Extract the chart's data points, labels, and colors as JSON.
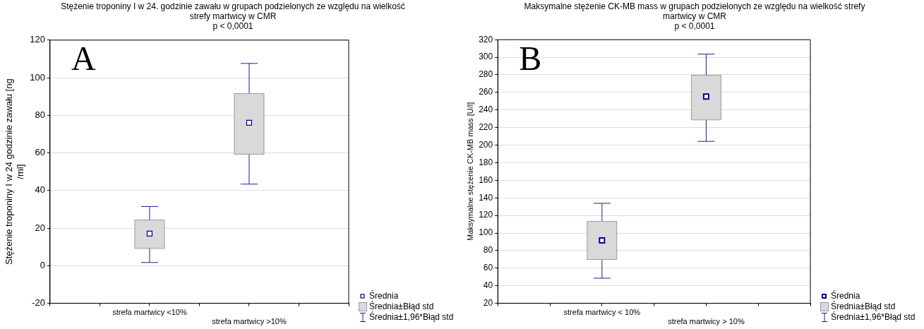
{
  "chart_data": [
    {
      "type": "box",
      "title": "Stężenie troponiny I w 24. godzinie zawału w grupach podzielonych ze względu na wielkość strefy martwicy w CMR",
      "subtitle": "p < 0,0001",
      "ylabel": "Stężenie troponiny I w 24 godzinie zawału [ng /ml]",
      "categories": [
        "strefa martwicy <10%",
        "strefa martwicy >10%"
      ],
      "series": [
        {
          "color": "#d9d9d9",
          "boxes": [
            {
              "low": 1.7,
              "q1": 9.2,
              "median": 17.1,
              "q3": 24.3,
              "high": 31.5
            },
            {
              "low": 43.4,
              "q1": 59.3,
              "median": 76.0,
              "q3": 91.6,
              "high": 107.6
            }
          ]
        }
      ],
      "ylim": [
        -20,
        120
      ],
      "yticks": [
        -20,
        0,
        20,
        40,
        60,
        80,
        100,
        120
      ],
      "grid": "y",
      "marker": "square",
      "annotations": [
        "A",
        "Średnia",
        "Średnia±Błąd std",
        "Średnia±1,96*Błąd std"
      ]
    },
    {
      "type": "box",
      "title": "Maksymalne stężenie CK-MB mass w grupach podzielonych ze względu na wielkość strefy martwicy w CMR",
      "subtitle": "p < 0,0001",
      "ylabel": "Maksymalne stężenie CK-MB mass [U/l]",
      "categories": [
        "strefa martwicy < 10%",
        "strefa martwicy > 10%"
      ],
      "series": [
        {
          "color": "#d9d9d9",
          "boxes": [
            {
              "low": 48.6,
              "q1": 69.9,
              "median": 91.5,
              "q3": 113.2,
              "high": 133.8
            },
            {
              "low": 204.3,
              "q1": 228.7,
              "median": 255.3,
              "q3": 279.5,
              "high": 303.6
            }
          ]
        }
      ],
      "ylim": [
        20,
        320
      ],
      "yticks": [
        20,
        40,
        60,
        80,
        100,
        120,
        140,
        160,
        180,
        200,
        220,
        240,
        260,
        280,
        300,
        320
      ],
      "grid": "y",
      "marker": "square",
      "annotations": [
        "B",
        "Średnia",
        "Średnia±Błąd std",
        "Średnia±1,96*Błąd std"
      ]
    }
  ]
}
